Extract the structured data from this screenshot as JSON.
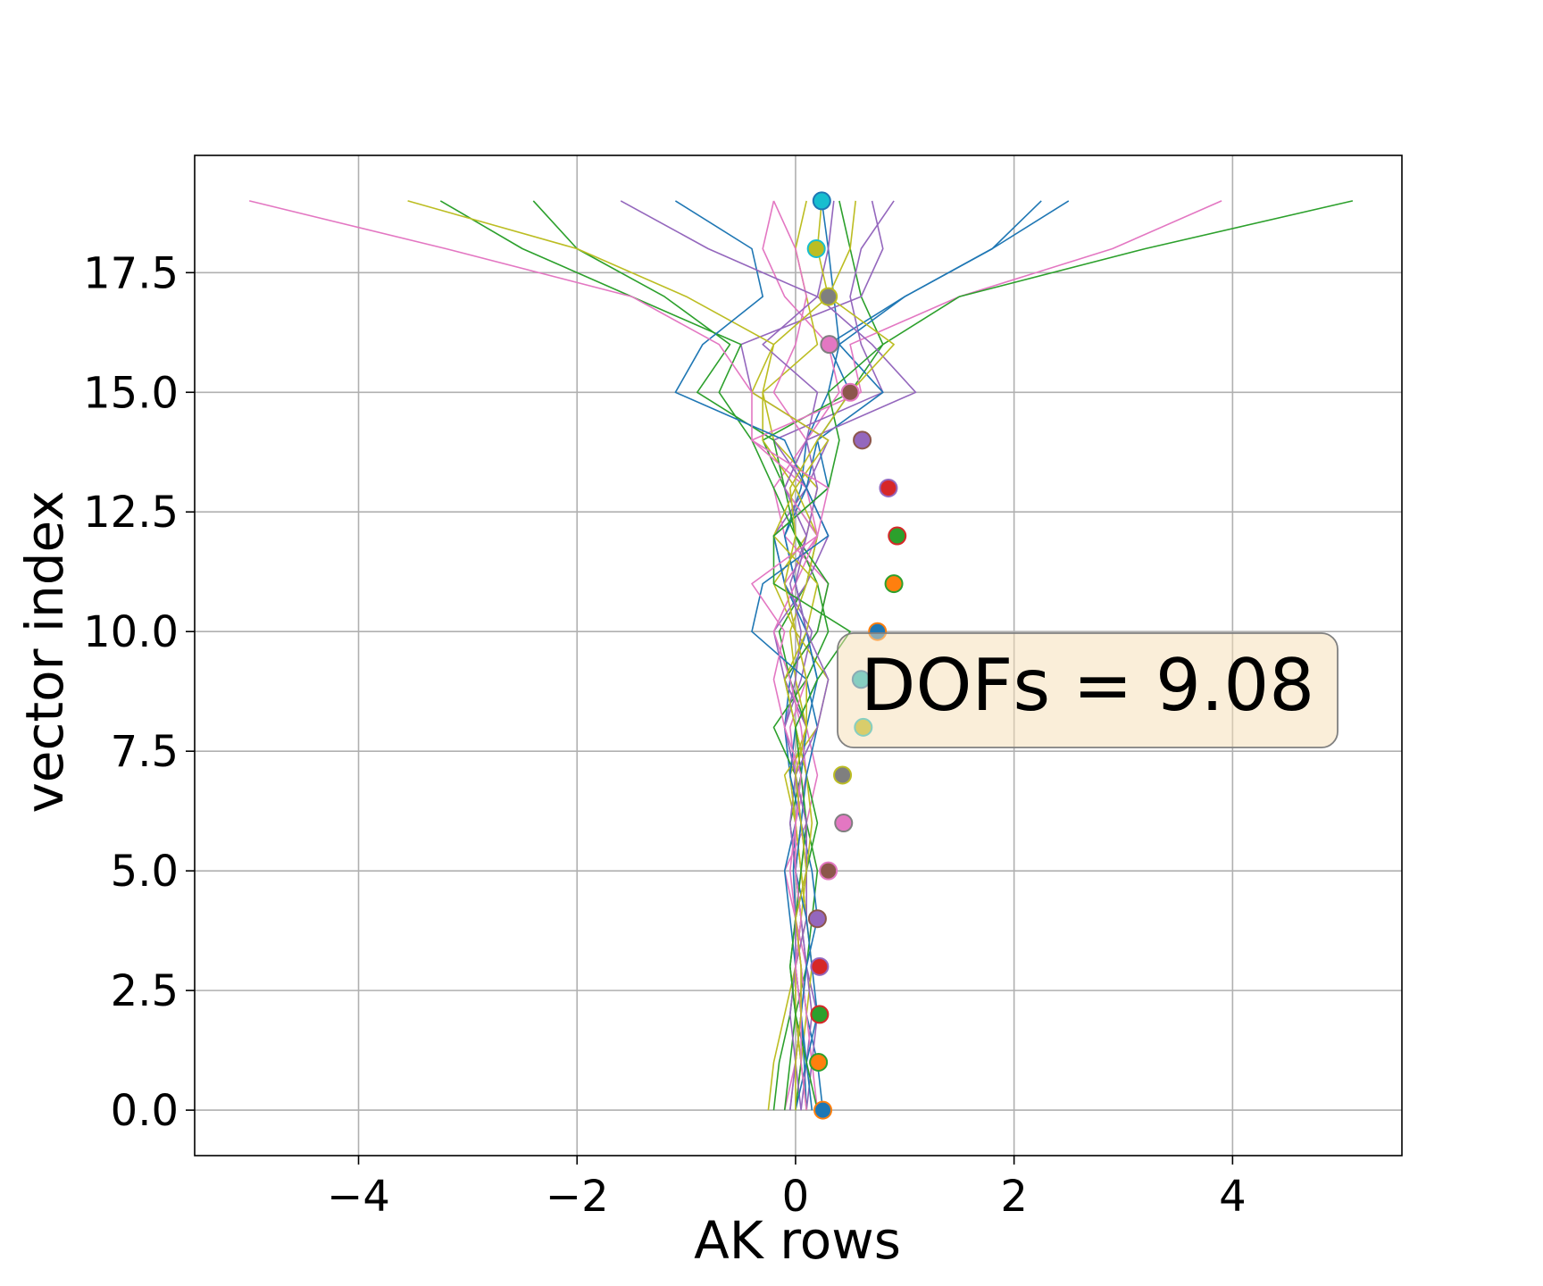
{
  "chart_data": {
    "type": "line",
    "xlabel": "AK rows",
    "ylabel": "vector index",
    "xlim": [
      -5.5,
      5.55
    ],
    "ylim": [
      -0.95,
      19.95
    ],
    "xticks": [
      {
        "value": -4,
        "label": "−4"
      },
      {
        "value": -2,
        "label": "−2"
      },
      {
        "value": 0,
        "label": "0"
      },
      {
        "value": 2,
        "label": "2"
      },
      {
        "value": 4,
        "label": "4"
      }
    ],
    "yticks": [
      {
        "value": 0,
        "label": "0.0"
      },
      {
        "value": 2.5,
        "label": "2.5"
      },
      {
        "value": 5,
        "label": "5.0"
      },
      {
        "value": 7.5,
        "label": "7.5"
      },
      {
        "value": 10,
        "label": "10.0"
      },
      {
        "value": 12.5,
        "label": "12.5"
      },
      {
        "value": 15,
        "label": "15.0"
      },
      {
        "value": 17.5,
        "label": "17.5"
      }
    ],
    "grid": true,
    "annotation": "DOFs = 9.08",
    "palette": [
      "#1f77b4",
      "#ff7f0e",
      "#2ca02c",
      "#d62728",
      "#9467bd",
      "#8c564b",
      "#e377c2",
      "#7f7f7f",
      "#bcbd22",
      "#17becf"
    ],
    "line_colors": [
      "#1f77b4",
      "#2ca02c",
      "#9467bd",
      "#e377c2",
      "#bcbd22"
    ],
    "markers": [
      {
        "index": 0,
        "value": 0.25
      },
      {
        "index": 1,
        "value": 0.21
      },
      {
        "index": 2,
        "value": 0.22
      },
      {
        "index": 3,
        "value": 0.22
      },
      {
        "index": 4,
        "value": 0.2
      },
      {
        "index": 5,
        "value": 0.3
      },
      {
        "index": 6,
        "value": 0.44
      },
      {
        "index": 7,
        "value": 0.43
      },
      {
        "index": 8,
        "value": 0.62
      },
      {
        "index": 9,
        "value": 0.6
      },
      {
        "index": 10,
        "value": 0.75
      },
      {
        "index": 11,
        "value": 0.9
      },
      {
        "index": 12,
        "value": 0.93
      },
      {
        "index": 13,
        "value": 0.85
      },
      {
        "index": 14,
        "value": 0.61
      },
      {
        "index": 15,
        "value": 0.5
      },
      {
        "index": 16,
        "value": 0.31
      },
      {
        "index": 17,
        "value": 0.3
      },
      {
        "index": 18,
        "value": 0.19
      },
      {
        "index": 19,
        "value": 0.24
      }
    ],
    "rows": [
      [
        0.25,
        0.2,
        0.1,
        0.05,
        0.0,
        -0.02,
        0.0,
        -0.05,
        -0.1,
        -0.05,
        0.1,
        0.0,
        -0.1,
        0.05,
        0.1,
        0.3,
        0.4,
        0.35,
        0.3,
        0.24
      ],
      [
        -0.2,
        -0.15,
        -0.05,
        0.0,
        0.05,
        0.0,
        -0.05,
        0.05,
        0.1,
        -0.05,
        -0.15,
        0.1,
        0.2,
        -0.1,
        -0.3,
        0.5,
        0.8,
        0.6,
        0.5,
        0.4
      ],
      [
        0.1,
        0.15,
        0.2,
        0.1,
        0.05,
        0.0,
        0.05,
        0.0,
        -0.1,
        0.05,
        0.15,
        -0.1,
        -0.2,
        0.1,
        0.3,
        -0.4,
        -0.5,
        0.6,
        0.8,
        0.7
      ],
      [
        -0.1,
        0.0,
        0.05,
        0.1,
        0.0,
        -0.1,
        0.1,
        0.2,
        0.1,
        -0.1,
        0.2,
        0.3,
        -0.1,
        -0.2,
        0.1,
        0.4,
        0.3,
        -0.1,
        -0.3,
        -0.2
      ],
      [
        0.0,
        0.05,
        0.1,
        0.15,
        0.1,
        0.05,
        0.0,
        -0.1,
        0.2,
        0.3,
        0.0,
        -0.2,
        0.1,
        0.2,
        -0.2,
        -0.3,
        0.2,
        0.1,
        0.0,
        0.1
      ],
      [
        0.1,
        0.08,
        0.05,
        0.0,
        -0.05,
        -0.1,
        0.0,
        0.05,
        0.1,
        0.2,
        0.1,
        0.0,
        -0.1,
        0.1,
        0.2,
        0.5,
        0.3,
        1.0,
        1.8,
        2.25
      ],
      [
        -0.1,
        -0.05,
        0.0,
        0.1,
        0.15,
        0.2,
        0.1,
        0.0,
        -0.2,
        0.1,
        0.3,
        0.2,
        0.0,
        -0.2,
        -0.4,
        -0.7,
        -0.5,
        -1.5,
        -2.5,
        -3.25
      ],
      [
        0.05,
        0.1,
        0.15,
        0.1,
        0.05,
        0.0,
        -0.05,
        0.0,
        0.1,
        -0.1,
        -0.2,
        0.1,
        0.3,
        0.1,
        -0.2,
        0.8,
        0.6,
        0.5,
        0.6,
        0.9
      ],
      [
        0.2,
        0.15,
        0.1,
        0.05,
        0.0,
        0.05,
        0.1,
        0.0,
        -0.05,
        0.1,
        0.0,
        -0.1,
        0.2,
        -0.1,
        0.1,
        -0.2,
        0.0,
        0.1,
        0.0,
        -0.2
      ],
      [
        -0.25,
        -0.2,
        -0.1,
        0.0,
        0.1,
        0.05,
        0.0,
        -0.05,
        0.1,
        0.0,
        -0.05,
        0.1,
        0.2,
        0.0,
        -0.3,
        -0.3,
        -0.2,
        0.3,
        0.5,
        0.55
      ],
      [
        0.15,
        0.1,
        0.05,
        0.1,
        0.2,
        0.15,
        0.05,
        -0.05,
        0.0,
        0.2,
        0.1,
        -0.1,
        -0.2,
        0.3,
        0.2,
        0.8,
        0.4,
        1.0,
        1.8,
        2.5
      ],
      [
        0.0,
        0.05,
        0.0,
        -0.05,
        0.0,
        0.1,
        0.2,
        0.1,
        0.0,
        -0.1,
        0.2,
        0.3,
        0.0,
        -0.1,
        -0.2,
        -0.9,
        -0.6,
        -1.2,
        -2.0,
        -2.4
      ],
      [
        0.05,
        0.0,
        -0.05,
        0.0,
        0.1,
        0.1,
        0.05,
        0.0,
        -0.1,
        0.0,
        0.05,
        -0.05,
        0.1,
        0.2,
        0.1,
        0.2,
        -0.3,
        0.2,
        0.3,
        0.35
      ],
      [
        -0.05,
        0.0,
        0.05,
        0.05,
        0.0,
        -0.05,
        0.0,
        0.1,
        0.05,
        -0.05,
        -0.2,
        0.0,
        0.2,
        0.1,
        -0.4,
        0.6,
        0.5,
        1.5,
        2.9,
        3.9
      ],
      [
        0.1,
        0.05,
        0.0,
        0.0,
        0.05,
        0.1,
        0.15,
        0.1,
        0.0,
        -0.1,
        0.1,
        0.2,
        -0.2,
        0.0,
        0.3,
        -0.4,
        -0.2,
        -1.0,
        -2.0,
        -3.55
      ],
      [
        0.0,
        0.1,
        0.2,
        0.15,
        0.1,
        0.0,
        0.05,
        0.1,
        0.2,
        0.1,
        -0.4,
        -0.3,
        0.3,
        0.1,
        -0.1,
        -1.1,
        -0.85,
        -0.3,
        -0.4,
        -1.1
      ],
      [
        0.2,
        0.1,
        0.0,
        -0.05,
        0.0,
        0.05,
        0.1,
        0.05,
        0.0,
        0.2,
        0.5,
        -0.2,
        -0.2,
        0.3,
        0.4,
        0.3,
        0.8,
        1.5,
        3.2,
        5.1
      ],
      [
        -0.05,
        0.0,
        0.05,
        0.0,
        0.0,
        0.1,
        0.1,
        0.0,
        0.2,
        0.3,
        0.1,
        0.0,
        0.1,
        -0.1,
        0.1,
        1.1,
        0.7,
        0.2,
        -0.8,
        -1.6
      ],
      [
        0.1,
        0.05,
        0.05,
        0.0,
        0.05,
        0.0,
        0.0,
        0.05,
        -0.1,
        -0.2,
        -0.1,
        -0.4,
        0.2,
        0.3,
        -0.4,
        -0.4,
        -0.7,
        -1.5,
        -3.2,
        -5.0
      ],
      [
        0.0,
        0.0,
        0.05,
        0.05,
        0.0,
        0.1,
        0.05,
        0.0,
        0.1,
        0.1,
        0.0,
        -0.1,
        0.0,
        -0.05,
        0.2,
        0.5,
        0.9,
        0.3,
        0.2,
        0.24
      ]
    ]
  }
}
